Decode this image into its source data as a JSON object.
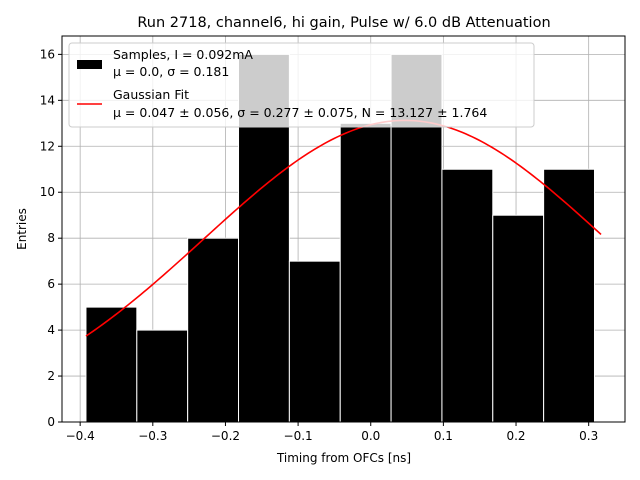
{
  "chart_data": {
    "type": "bar",
    "title": "Run 2718, channel6, hi gain, Pulse w/ 6.0 dB Attenuation",
    "xlabel": "Timing from OFCs [ns]",
    "ylabel": "Entries",
    "xlim": [
      -0.425,
      0.35
    ],
    "ylim": [
      0,
      16.8
    ],
    "xticks": [
      -0.4,
      -0.3,
      -0.2,
      -0.1,
      0.0,
      0.1,
      0.2,
      0.3
    ],
    "xtick_labels": [
      "−0.4",
      "−0.3",
      "−0.2",
      "−0.1",
      "0.0",
      "0.1",
      "0.2",
      "0.3"
    ],
    "yticks": [
      0,
      2,
      4,
      6,
      8,
      10,
      12,
      14,
      16
    ],
    "ytick_labels": [
      "0",
      "2",
      "4",
      "6",
      "8",
      "10",
      "12",
      "14",
      "16"
    ],
    "grid": true,
    "legend_position": "top-left",
    "histogram": {
      "name": "Samples, I = 0.092mA",
      "stats": "μ = 0.0, σ = 0.181",
      "color": "#000000",
      "bin_edges": [
        -0.392,
        -0.322,
        -0.252,
        -0.182,
        -0.112,
        -0.042,
        0.028,
        0.098,
        0.168,
        0.238,
        0.308
      ],
      "counts": [
        5,
        4,
        8,
        16,
        7,
        13,
        16,
        11,
        9,
        11
      ]
    },
    "fit": {
      "name": "Gaussian Fit",
      "stats": "μ = 0.047 ± 0.056, σ = 0.277 ± 0.075, N = 13.127 ± 1.764",
      "color": "#ff0000",
      "mu": 0.047,
      "sigma": 0.277,
      "N": 13.127,
      "x_range": [
        -0.392,
        0.317
      ]
    },
    "grid_color": "#b0b0b0"
  }
}
